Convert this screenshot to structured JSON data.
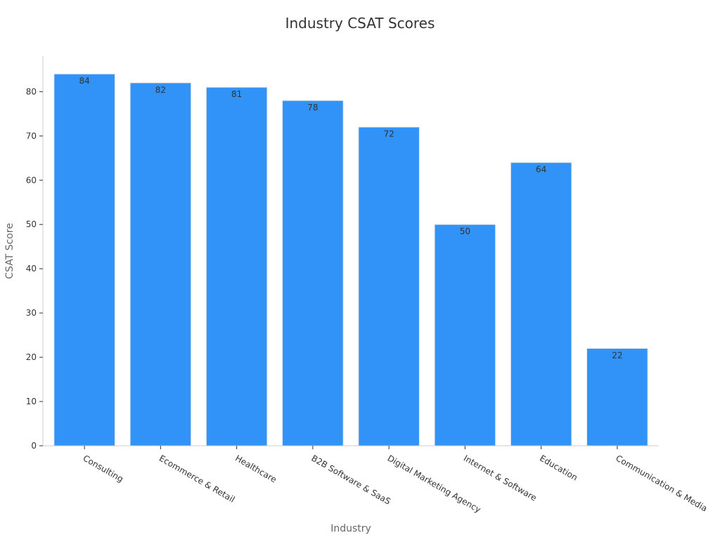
{
  "chart_data": {
    "type": "bar",
    "title": "Industry CSAT Scores",
    "xlabel": "Industry",
    "ylabel": "CSAT Score",
    "categories": [
      "Consulting",
      "Ecommerce & Retail",
      "Healthcare",
      "B2B Software & SaaS",
      "Digital Marketing Agency",
      "Internet & Software",
      "Education",
      "Communication & Media"
    ],
    "values": [
      84,
      82,
      81,
      78,
      72,
      50,
      64,
      22
    ],
    "ylim": [
      0,
      88
    ],
    "yticks": [
      0,
      10,
      20,
      30,
      40,
      50,
      60,
      70,
      80
    ],
    "grid": false,
    "bar_color": "#3192f7",
    "bar_edge_color": "#e8e8e8"
  }
}
